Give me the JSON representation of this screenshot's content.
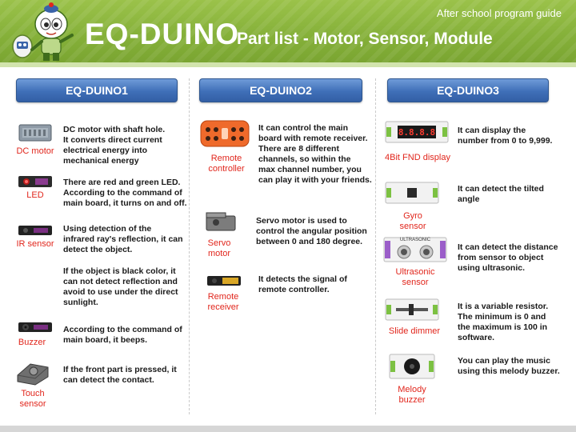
{
  "header": {
    "top_right": "After school program guide",
    "brand": "EQ-DUINO",
    "subtitle": "Part list - Motor, Sensor, Module"
  },
  "columns": {
    "c1": "EQ-DUINO1",
    "c2": "EQ-DUINO2",
    "c3": "EQ-DUINO3"
  },
  "items": {
    "dc_motor": {
      "label": "DC motor",
      "desc": [
        "DC motor with shaft hole.",
        "It converts direct current",
        "electrical energy into",
        "mechanical energy"
      ]
    },
    "led": {
      "label": "LED",
      "desc": [
        "There are red and green LED.",
        "According to the command of",
        "main board, it turns on and off."
      ]
    },
    "ir_sensor": {
      "label": "IR sensor",
      "desc": [
        "Using detection of the",
        "infrared ray's reflection, it can",
        "detect the object."
      ],
      "desc2": [
        "If the object is black color, it",
        "can not detect reflection and",
        "avoid to use under the direct",
        "sunlight."
      ]
    },
    "buzzer": {
      "label": "Buzzer",
      "desc": [
        "According to the command of",
        "main board, it beeps."
      ]
    },
    "touch_sensor": {
      "label": [
        "Touch",
        "sensor"
      ],
      "desc": [
        "If the front part is pressed, it",
        "can detect the contact."
      ]
    },
    "remote_controller": {
      "label": [
        "Remote",
        "controller"
      ],
      "desc": [
        "It can control the main",
        "board with remote receiver.",
        "There are 8 different",
        "channels, so within the",
        "max channel number, you",
        "can play it with your friends."
      ]
    },
    "servo_motor": {
      "label": [
        "Servo",
        "motor"
      ],
      "desc": [
        "Servo motor is used to",
        "control the angular position",
        "between 0 and 180 degree."
      ]
    },
    "remote_receiver": {
      "label": [
        "Remote",
        "receiver"
      ],
      "desc": [
        "It detects the signal of",
        "remote controller."
      ]
    },
    "fnd_display": {
      "label": "4Bit FND display",
      "desc": [
        "It can display the",
        "number from 0 to 9,999."
      ],
      "screen_text": "8.8.8.8"
    },
    "gyro_sensor": {
      "label": [
        "Gyro",
        "sensor"
      ],
      "desc": [
        "It can detect the tilted",
        "angle"
      ]
    },
    "ultrasonic_sensor": {
      "label": [
        "Ultrasonic",
        "sensor"
      ],
      "desc": [
        "It can detect the distance",
        "from sensor to object",
        "using ultrasonic."
      ],
      "board_text": "ULTRASONIC"
    },
    "slide_dimmer": {
      "label": "Slide dimmer",
      "desc": [
        "It is a variable resistor.",
        "The minimum is 0 and",
        "the maximum is 100 in",
        "software."
      ]
    },
    "melody_buzzer": {
      "label": [
        "Melody",
        "buzzer"
      ],
      "desc": [
        "You can play the music",
        "using this melody buzzer."
      ]
    }
  },
  "colors": {
    "header_green": "#86b13a",
    "column_blue": "#3f6fb8",
    "label_red": "#e1261c"
  }
}
